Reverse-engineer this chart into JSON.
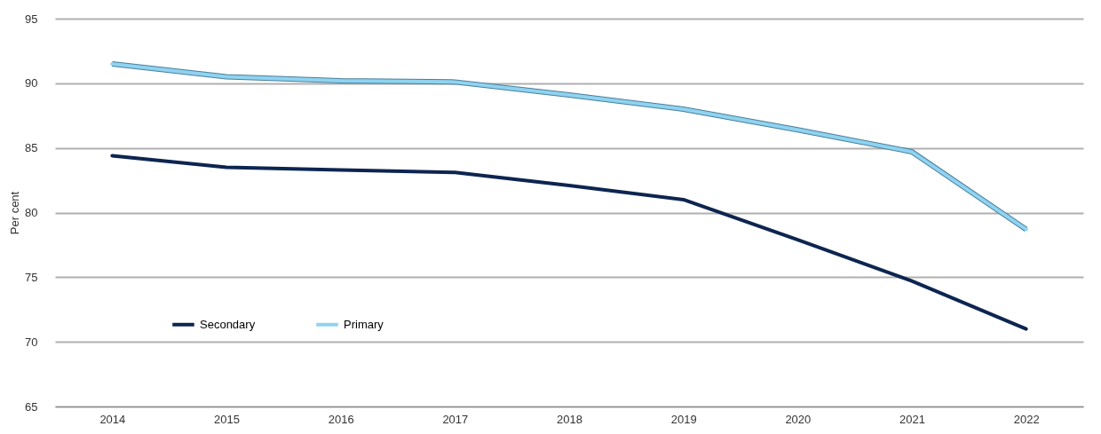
{
  "chart_data": {
    "type": "line",
    "ylabel": "Per cent",
    "categories": [
      "2014",
      "2015",
      "2016",
      "2017",
      "2018",
      "2019",
      "2020",
      "2021",
      "2022"
    ],
    "series": [
      {
        "name": "Secondary",
        "color": "#0d2550",
        "values": [
          84.4,
          83.5,
          83.3,
          83.1,
          82.1,
          81.0,
          77.9,
          74.7,
          71.0
        ]
      },
      {
        "name": "Primary",
        "color": "#8fd3f0",
        "values": [
          91.5,
          90.5,
          90.2,
          90.1,
          89.1,
          88.0,
          86.4,
          84.7,
          78.7
        ]
      }
    ],
    "ylim": [
      65,
      95
    ],
    "yticks": [
      65,
      70,
      75,
      80,
      85,
      90,
      95
    ],
    "grid": "y",
    "legend": "bottom left",
    "marker": "none",
    "line_style": "solid"
  }
}
